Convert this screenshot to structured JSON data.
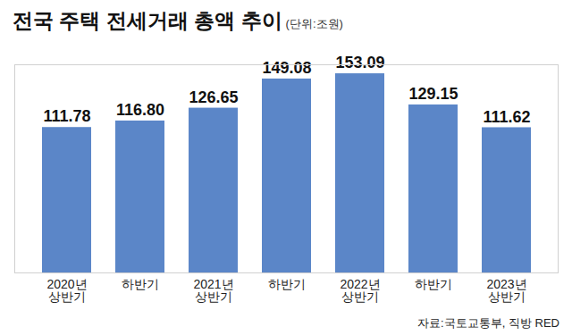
{
  "chart_data": {
    "type": "bar",
    "title": "전국 주택 전세거래 총액 추이",
    "subtitle": "(단위:조원)",
    "caption": "자료:국토교통부, 직방 RED",
    "categories": [
      "2020년\n상반기",
      "하반기",
      "2021년\n상반기",
      "하반기",
      "2022년\n상반기",
      "하반기",
      "2023년\n상반기"
    ],
    "values": [
      111.78,
      116.8,
      126.65,
      149.08,
      153.09,
      129.15,
      111.62
    ],
    "value_labels": [
      "111.78",
      "116.80",
      "126.65",
      "149.08",
      "153.09",
      "129.15",
      "111.62"
    ],
    "color": "#5b86c8",
    "ylim": [
      0,
      160
    ],
    "data_labels": true,
    "tick_labels": "x",
    "grid": false
  }
}
